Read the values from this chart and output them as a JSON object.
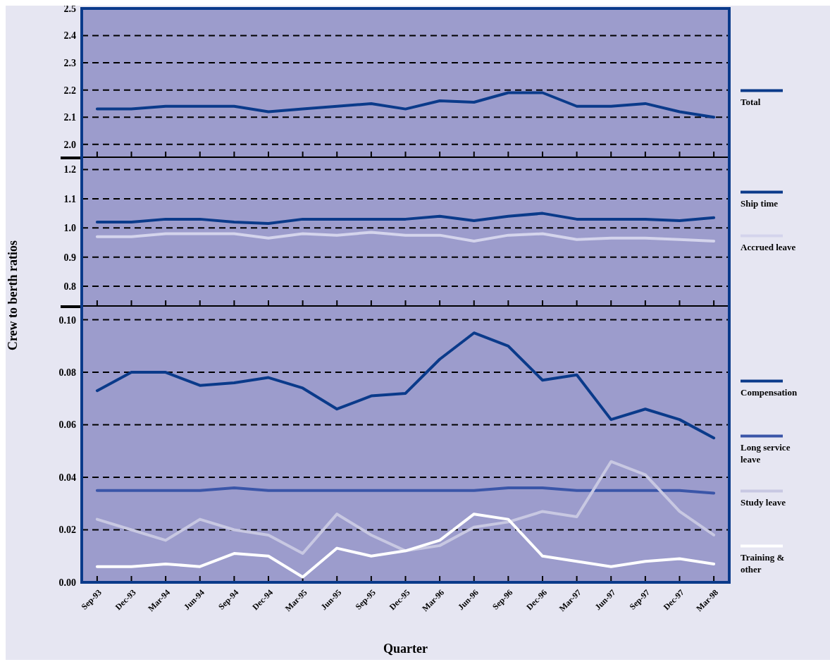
{
  "chart_data": [
    {
      "type": "line",
      "categories": [
        null,
        null,
        null,
        null,
        null,
        null,
        null,
        null,
        null,
        null,
        null,
        null,
        null,
        null,
        null,
        null,
        null,
        null,
        null
      ],
      "series": [
        {
          "name": "Total",
          "color": "#0a3a8a",
          "values": [
            2.13,
            2.13,
            2.14,
            2.14,
            2.14,
            2.12,
            2.13,
            2.14,
            2.15,
            2.13,
            2.16,
            2.155,
            2.19,
            2.19,
            2.14,
            2.14,
            2.15,
            2.12,
            2.1
          ]
        }
      ],
      "ylim": [
        1.95,
        2.5
      ],
      "yticks": [
        {
          "value": 2,
          "label": "2.0"
        },
        2.1,
        2.2,
        2.3,
        2.4,
        2.5
      ],
      "grid": "y",
      "legend": "right",
      "tick_labels": "y"
    },
    {
      "type": "line",
      "categories": [
        null,
        null,
        null,
        null,
        null,
        null,
        null,
        null,
        null,
        null,
        null,
        null,
        null,
        null,
        null,
        null,
        null,
        null,
        null
      ],
      "ylabel": "Crew to berth ratios",
      "series": [
        {
          "name": "Ship time",
          "color": "#0a3a8a",
          "values": [
            1.02,
            1.02,
            1.03,
            1.03,
            1.02,
            1.015,
            1.03,
            1.03,
            1.03,
            1.03,
            1.04,
            1.025,
            1.04,
            1.05,
            1.03,
            1.03,
            1.03,
            1.025,
            1.035
          ]
        },
        {
          "name": "Accrued leave",
          "color": "#d4d4ec",
          "values": [
            0.97,
            0.97,
            0.98,
            0.98,
            0.98,
            0.965,
            0.98,
            0.975,
            0.985,
            0.975,
            0.975,
            0.955,
            0.975,
            0.98,
            0.96,
            0.965,
            0.965,
            0.96,
            0.955
          ]
        }
      ],
      "ylim": [
        0.73,
        1.24
      ],
      "yticks": [
        0.8,
        0.9,
        {
          "value": 1,
          "label": "1.0"
        },
        1.1,
        1.2
      ],
      "grid": "y",
      "legend": "right",
      "tick_labels": "y"
    },
    {
      "type": "line",
      "categories": [
        "Sep-93",
        "Dec-93",
        "Mar-94",
        "Jun-94",
        "Sep-94",
        "Dec-94",
        "Mar-95",
        "Jun-95",
        "Sep-95",
        "Dec-95",
        "Mar-96",
        "Jun-96",
        "Sep-96",
        "Dec-96",
        "Mar-97",
        "Jun-97",
        "Sep-97",
        "Dec-97",
        "Mar-98"
      ],
      "xlabel": "Quarter",
      "series": [
        {
          "name": "Compensation",
          "color": "#0a3a8a",
          "values": [
            0.073,
            0.08,
            0.08,
            0.075,
            0.076,
            0.078,
            0.074,
            0.066,
            0.071,
            0.072,
            0.085,
            0.095,
            0.09,
            0.077,
            0.079,
            0.062,
            0.066,
            0.062,
            0.055
          ]
        },
        {
          "name": "Long service leave",
          "color": "#3a55a8",
          "values": [
            0.035,
            0.035,
            0.035,
            0.035,
            0.036,
            0.035,
            0.035,
            0.035,
            0.035,
            0.035,
            0.035,
            0.035,
            0.036,
            0.036,
            0.035,
            0.035,
            0.035,
            0.035,
            0.034
          ]
        },
        {
          "name": "Study leave",
          "color": "#c8c8e2",
          "values": [
            0.024,
            0.02,
            0.016,
            0.024,
            0.02,
            0.018,
            0.011,
            0.026,
            0.018,
            0.012,
            0.014,
            0.021,
            0.023,
            0.027,
            0.025,
            0.046,
            0.041,
            0.027,
            0.018
          ]
        },
        {
          "name": "Training & other",
          "color": "#ffffff",
          "values": [
            0.006,
            0.006,
            0.007,
            0.006,
            0.011,
            0.01,
            0.002,
            0.013,
            0.01,
            0.012,
            0.016,
            0.026,
            0.024,
            0.01,
            0.008,
            0.006,
            0.008,
            0.009,
            0.007
          ]
        }
      ],
      "ylim": [
        0,
        0.105
      ],
      "yticks": [
        {
          "value": 0,
          "label": "0.00"
        },
        {
          "value": 0.02,
          "label": "0.02"
        },
        {
          "value": 0.04,
          "label": "0.04"
        },
        {
          "value": 0.06,
          "label": "0.06"
        },
        {
          "value": 0.08,
          "label": "0.08"
        },
        {
          "value": 0.1,
          "label": "0.10"
        }
      ],
      "grid": "y",
      "legend": "right"
    }
  ]
}
